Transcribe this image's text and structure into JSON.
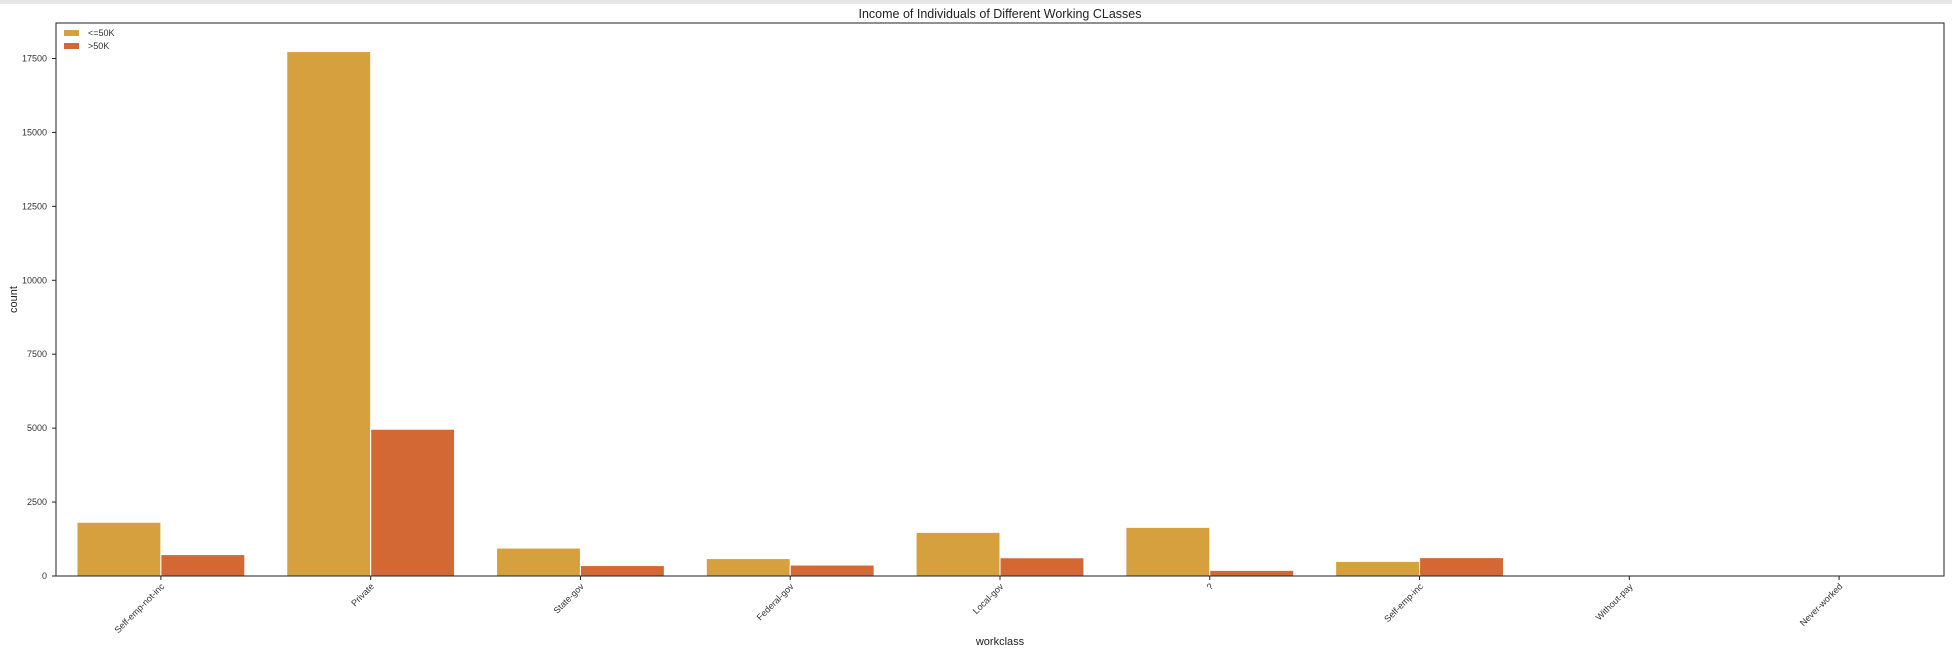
{
  "chart_data": {
    "type": "bar",
    "title": "Income of Individuals of Different Working CLasses",
    "xlabel": "workclass",
    "ylabel": "count",
    "categories": [
      "Self-emp-not-inc",
      "Private",
      "State-gov",
      "Federal-gov",
      "Local-gov",
      "?",
      "Self-emp-inc",
      "Without-pay",
      "Never-worked"
    ],
    "series": [
      {
        "name": "<=50K",
        "color": "#d6a03e",
        "values": [
          1817,
          17733,
          945,
          589,
          1476,
          1645,
          494,
          14,
          7
        ]
      },
      {
        "name": ">50K",
        "color": "#d36835",
        "values": [
          724,
          4963,
          353,
          371,
          617,
          191,
          622,
          0,
          0
        ]
      }
    ],
    "ylim": [
      0,
      18700
    ],
    "yticks": [
      0,
      2500,
      5000,
      7500,
      10000,
      12500,
      15000,
      17500
    ],
    "grid": false,
    "legend_position": "top-left"
  }
}
